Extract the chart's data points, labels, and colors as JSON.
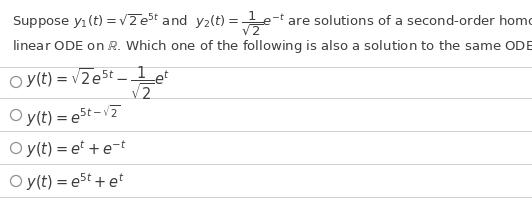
{
  "background_color": "#ffffff",
  "text_color": "#3d3d3d",
  "title_line1": "Suppose $y_1(t) = \\sqrt{2}e^{5t}$ and  $y_2(t) = \\dfrac{1}{\\sqrt{2}}e^{-t}$ are solutions of a second-order homogeneous",
  "title_line2": "linear ODE on $\\mathbb{R}$. Which one of the following is also a solution to the same ODE?",
  "options": [
    "$y(t) = \\sqrt{2}e^{5t} - \\dfrac{1}{\\sqrt{2}}e^{t}$",
    "$y(t) = e^{5t - \\sqrt{2}}$",
    "$y(t) = e^{t} + e^{-t}$",
    "$y(t) = e^{5t} + e^{t}$"
  ],
  "divider_color": "#d0d0d0",
  "circle_color": "#909090",
  "font_size_title": 9.5,
  "font_size_options": 10.5,
  "fig_width": 5.32,
  "fig_height": 2.01,
  "dpi": 100
}
